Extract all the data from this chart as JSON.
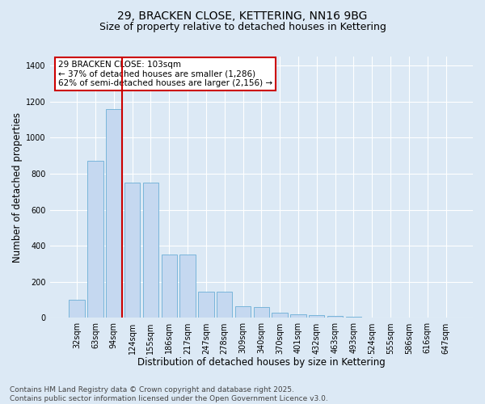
{
  "title_line1": "29, BRACKEN CLOSE, KETTERING, NN16 9BG",
  "title_line2": "Size of property relative to detached houses in Kettering",
  "xlabel": "Distribution of detached houses by size in Kettering",
  "ylabel": "Number of detached properties",
  "categories": [
    "32sqm",
    "63sqm",
    "94sqm",
    "124sqm",
    "155sqm",
    "186sqm",
    "217sqm",
    "247sqm",
    "278sqm",
    "309sqm",
    "340sqm",
    "370sqm",
    "401sqm",
    "432sqm",
    "463sqm",
    "493sqm",
    "524sqm",
    "555sqm",
    "586sqm",
    "616sqm",
    "647sqm"
  ],
  "values": [
    100,
    870,
    1160,
    750,
    750,
    350,
    350,
    145,
    145,
    65,
    60,
    28,
    20,
    15,
    12,
    5,
    0,
    0,
    0,
    0,
    0
  ],
  "bar_color": "#c5d8f0",
  "bar_edge_color": "#6baed6",
  "vline_x": 2.45,
  "vline_color": "#cc0000",
  "annotation_text": "29 BRACKEN CLOSE: 103sqm\n← 37% of detached houses are smaller (1,286)\n62% of semi-detached houses are larger (2,156) →",
  "annotation_box_color": "#cc0000",
  "ylim": [
    0,
    1450
  ],
  "yticks": [
    0,
    200,
    400,
    600,
    800,
    1000,
    1200,
    1400
  ],
  "background_color": "#dce9f5",
  "plot_bg_color": "#dce9f5",
  "fig_bg_color": "#dce9f5",
  "grid_color": "#ffffff",
  "footer_text": "Contains HM Land Registry data © Crown copyright and database right 2025.\nContains public sector information licensed under the Open Government Licence v3.0.",
  "title_fontsize": 10,
  "subtitle_fontsize": 9,
  "tick_fontsize": 7,
  "xlabel_fontsize": 8.5,
  "ylabel_fontsize": 8.5,
  "annotation_fontsize": 7.5,
  "footer_fontsize": 6.5
}
